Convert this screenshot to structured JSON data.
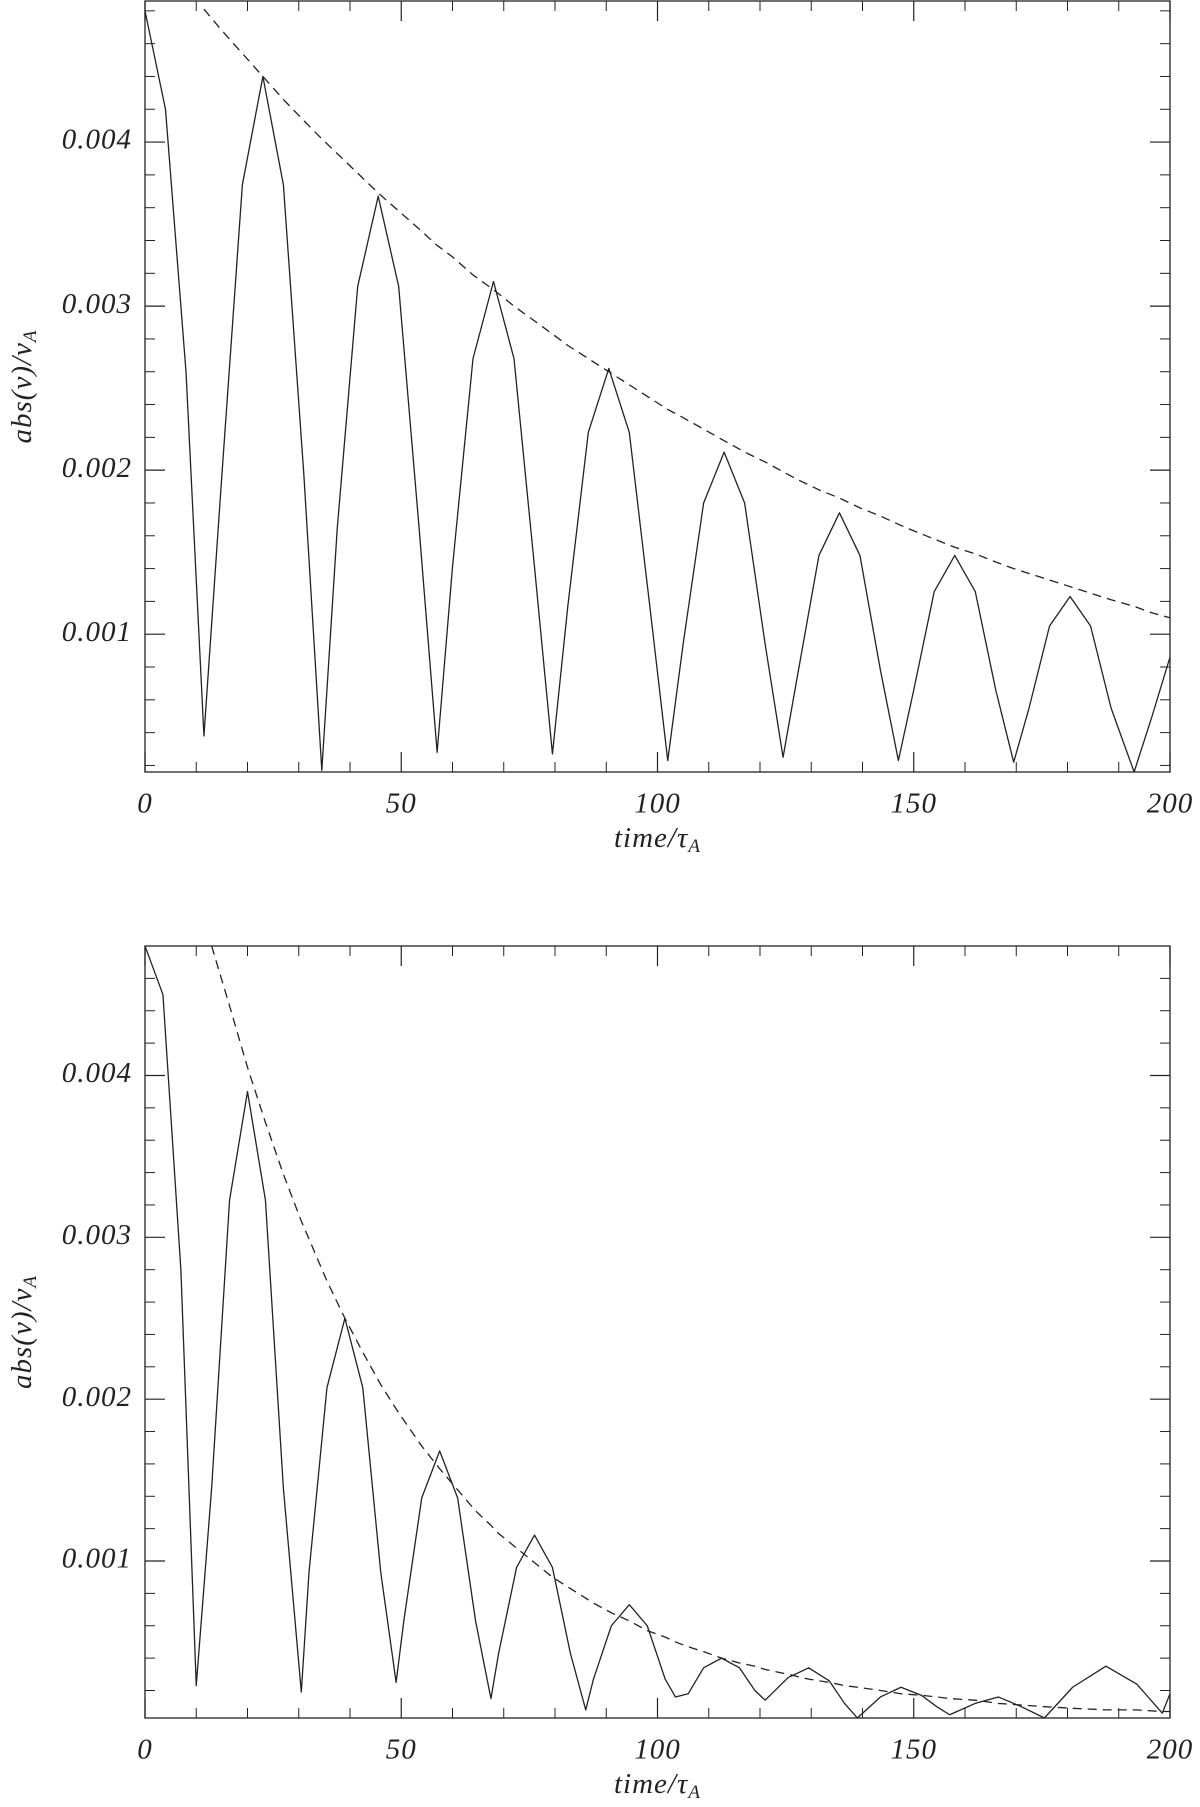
{
  "chart_data": [
    {
      "type": "line",
      "xlabel": {
        "text": "time/τ",
        "sub": "A"
      },
      "ylabel": {
        "text": "abs(v)/v",
        "sub": "A"
      },
      "xlim": [
        0,
        200
      ],
      "ylim": [
        0.00016,
        0.00486
      ],
      "xticks": [
        0,
        50,
        100,
        150,
        200
      ],
      "yticks": [
        0.001,
        0.002,
        0.003,
        0.004
      ],
      "xminorticks": [
        10,
        20,
        30,
        40,
        60,
        70,
        80,
        90,
        110,
        120,
        130,
        140,
        160,
        170,
        180,
        190
      ],
      "yminorticks": [
        0.0002,
        0.0004,
        0.0006,
        0.0008,
        0.0012,
        0.0014,
        0.0016,
        0.0018,
        0.0022,
        0.0024,
        0.0026,
        0.0028,
        0.0032,
        0.0034,
        0.0036,
        0.0038,
        0.0042,
        0.0044,
        0.0046,
        0.0048
      ],
      "x": [
        0,
        4,
        8,
        11.5,
        15,
        19,
        23,
        27,
        31,
        34.5,
        37.5,
        41.5,
        45.5,
        49.5,
        53.5,
        57,
        60,
        64,
        68,
        72,
        76,
        79.5,
        82.5,
        86.5,
        90.5,
        94.5,
        98.5,
        102,
        105,
        109,
        113,
        117,
        121,
        124.5,
        127.5,
        131.5,
        135.5,
        139.5,
        143.5,
        147,
        150,
        154,
        158,
        162,
        166,
        169.5,
        172.5,
        176.5,
        180.5,
        184.5,
        188.5,
        193,
        196.5,
        200
      ],
      "series": [
        {
          "color": "#222222",
          "dash": "solid",
          "values": [
            0.0048,
            0.0042,
            0.0026,
            0.00038,
            0.00197,
            0.00374,
            0.0044,
            0.00374,
            0.00197,
            0.00017,
            0.00164,
            0.00312,
            0.00367,
            0.00312,
            0.00164,
            0.00028,
            0.00141,
            0.00268,
            0.00315,
            0.00268,
            0.00141,
            0.00027,
            0.00117,
            0.00223,
            0.00262,
            0.00223,
            0.00117,
            0.00023,
            0.00094,
            0.0018,
            0.00211,
            0.0018,
            0.00094,
            0.00025,
            0.00078,
            0.00148,
            0.00174,
            0.00148,
            0.00078,
            0.00023,
            0.00066,
            0.00126,
            0.00148,
            0.00126,
            0.00066,
            0.00022,
            0.00055,
            0.00105,
            0.00123,
            0.00105,
            0.00055,
            0.00016,
            0.0005,
            0.00086
          ]
        },
        {
          "color": "#222222",
          "dash": "dashed",
          "values": [
            null,
            null,
            null,
            0.00481,
            0.00468,
            0.00454,
            0.0044,
            0.00426,
            0.00413,
            0.00402,
            0.00393,
            0.00381,
            0.00369,
            0.00358,
            0.00347,
            0.00337,
            0.0033,
            0.00319,
            0.0031,
            0.003,
            0.00291,
            0.00283,
            0.00276,
            0.00268,
            0.0026,
            0.00252,
            0.00244,
            0.00237,
            0.00232,
            0.00225,
            0.00218,
            0.00211,
            0.00205,
            0.00199,
            0.00194,
            0.00188,
            0.00183,
            0.00177,
            0.00172,
            0.00167,
            0.00163,
            0.00158,
            0.00153,
            0.00149,
            0.00144,
            0.0014,
            0.00137,
            0.00133,
            0.00129,
            0.00125,
            0.00121,
            0.00117,
            0.00113,
            0.0011
          ]
        }
      ]
    },
    {
      "type": "line",
      "xlabel": {
        "text": "time/τ",
        "sub": "A"
      },
      "ylabel": {
        "text": "abs(v)/v",
        "sub": "A"
      },
      "xlim": [
        0,
        200
      ],
      "ylim": [
        3e-05,
        0.0048
      ],
      "xticks": [
        0,
        50,
        100,
        150,
        200
      ],
      "yticks": [
        0.001,
        0.002,
        0.003,
        0.004
      ],
      "xminorticks": [
        10,
        20,
        30,
        40,
        60,
        70,
        80,
        90,
        110,
        120,
        130,
        140,
        160,
        170,
        180,
        190
      ],
      "yminorticks": [
        0.0002,
        0.0004,
        0.0006,
        0.0008,
        0.0012,
        0.0014,
        0.0016,
        0.0018,
        0.0022,
        0.0024,
        0.0026,
        0.0028,
        0.0032,
        0.0034,
        0.0036,
        0.0038,
        0.0042,
        0.0044,
        0.0046,
        0.0048
      ],
      "x": [
        0,
        3.5,
        7,
        10,
        13,
        16.5,
        20,
        23.5,
        27,
        30.5,
        32,
        35.5,
        39,
        42.5,
        46,
        49,
        50.5,
        54,
        57.5,
        61,
        64.5,
        67.5,
        69,
        72.5,
        76,
        79.5,
        83,
        86,
        87.5,
        91,
        94.5,
        98,
        101.5,
        103.5,
        106,
        109,
        112.5,
        116,
        119,
        121,
        125.5,
        129.5,
        133.5,
        136.5,
        139,
        143.5,
        147.5,
        151.5,
        154.5,
        157,
        162,
        166.5,
        171,
        175.5,
        181,
        187.5,
        193.5,
        198.5,
        200
      ],
      "series": [
        {
          "color": "#222222",
          "dash": "solid",
          "values": [
            0.0048,
            0.0045,
            0.0028,
            0.00023,
            0.00145,
            0.00323,
            0.0039,
            0.00323,
            0.00145,
            0.00019,
            0.00093,
            0.00207,
            0.0025,
            0.00207,
            0.00093,
            0.00025,
            0.00063,
            0.00139,
            0.00168,
            0.00139,
            0.00063,
            0.00015,
            0.00043,
            0.00096,
            0.00116,
            0.00096,
            0.00043,
            8e-05,
            0.00027,
            0.0006,
            0.00073,
            0.0006,
            0.00027,
            0.00016,
            0.00018,
            0.00034,
            0.0004,
            0.00034,
            0.0002,
            0.00014,
            0.00028,
            0.00034,
            0.00026,
            0.00012,
            3e-05,
            0.00016,
            0.00022,
            0.00017,
            0.0001,
            5e-05,
            0.00012,
            0.00016,
            0.0001,
            3e-05,
            0.00022,
            0.00035,
            0.00024,
            6e-05,
            0.00018
          ]
        },
        {
          "color": "#222222",
          "dash": "dashed",
          "values": [
            null,
            null,
            null,
            null,
            0.0048,
            0.00443,
            0.00405,
            0.00371,
            0.00339,
            0.0031,
            0.00299,
            0.00273,
            0.0025,
            0.00229,
            0.00209,
            0.00194,
            0.00187,
            0.00171,
            0.00157,
            0.00144,
            0.00131,
            0.00122,
            0.00117,
            0.00108,
            0.00099,
            0.0009,
            0.00083,
            0.00077,
            0.00074,
            0.00068,
            0.00063,
            0.00057,
            0.00053,
            0.0005,
            0.00047,
            0.00044,
            0.0004,
            0.00037,
            0.00035,
            0.00033,
            0.0003,
            0.00027,
            0.00025,
            0.00023,
            0.00022,
            0.0002,
            0.00018,
            0.00017,
            0.00016,
            0.00015,
            0.00014,
            0.00012,
            0.00011,
            0.0001,
            9e-05,
            8e-05,
            8e-05,
            7e-05,
            7e-05
          ]
        }
      ]
    }
  ]
}
